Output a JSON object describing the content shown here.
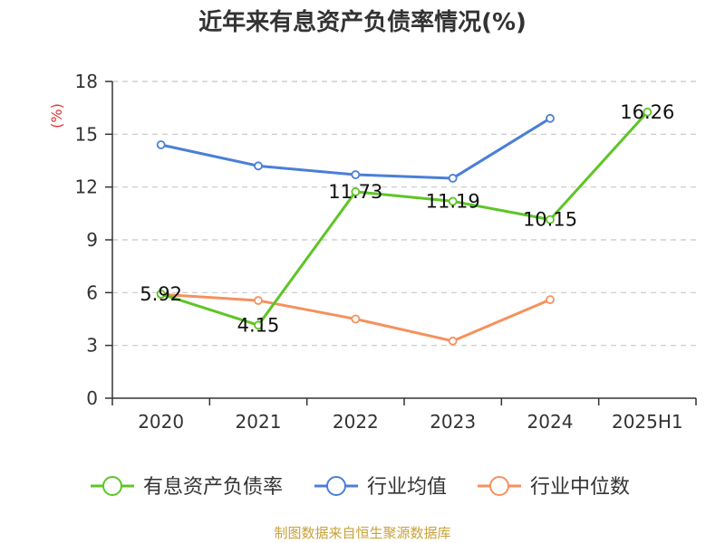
{
  "chart_data": {
    "type": "line",
    "title": "近年来有息资产负债率情况(%)",
    "ylabel": "(%)",
    "ylim": [
      0,
      18
    ],
    "yticks": [
      0,
      3,
      6,
      9,
      12,
      15,
      18
    ],
    "categories": [
      "2020",
      "2021",
      "2022",
      "2023",
      "2024",
      "2025H1"
    ],
    "grid": true,
    "legend_position": "bottom",
    "series": [
      {
        "name": "有息资产负债率",
        "color": "#5ec526",
        "values": [
          5.92,
          4.15,
          11.73,
          11.19,
          10.15,
          16.26
        ],
        "labels": [
          "5.92",
          "4.15",
          "11.73",
          "11.19",
          "10.15",
          "16.26"
        ]
      },
      {
        "name": "行业均值",
        "color": "#4a7fd6",
        "values": [
          14.4,
          13.2,
          12.7,
          12.5,
          15.9,
          null
        ]
      },
      {
        "name": "行业中位数",
        "color": "#f5915d",
        "values": [
          5.9,
          5.55,
          4.5,
          3.25,
          5.6,
          null
        ]
      }
    ]
  },
  "source": "制图数据来自恒生聚源数据库"
}
